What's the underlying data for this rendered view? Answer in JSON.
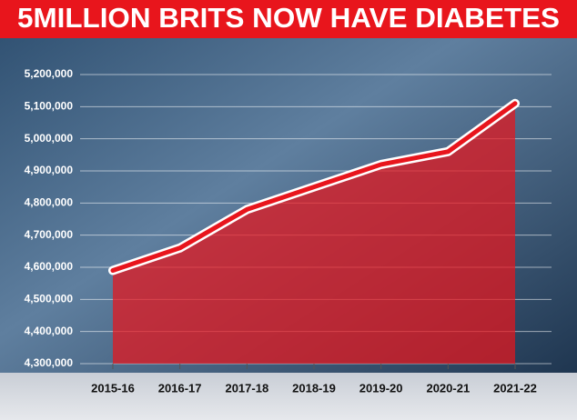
{
  "chart_data": {
    "type": "area-line",
    "title": "5MILLION BRITS NOW HAVE DIABETES",
    "categories": [
      "2015-16",
      "2016-17",
      "2017-18",
      "2018-19",
      "2019-20",
      "2020-21",
      "2021-22"
    ],
    "values": [
      4590000,
      4660000,
      4780000,
      4850000,
      4920000,
      4960000,
      5110000
    ],
    "color": "#e8151c",
    "ylim": [
      4300000,
      5200000
    ],
    "yticks": [
      {
        "value": 4300000,
        "label": "4,300,000"
      },
      {
        "value": 4400000,
        "label": "4,400,000"
      },
      {
        "value": 4500000,
        "label": "4,500,000"
      },
      {
        "value": 4600000,
        "label": "4,600,000"
      },
      {
        "value": 4700000,
        "label": "4,700,000"
      },
      {
        "value": 4800000,
        "label": "4,800,000"
      },
      {
        "value": 4900000,
        "label": "4,900,000"
      },
      {
        "value": 5000000,
        "label": "5,000,000"
      },
      {
        "value": 5100000,
        "label": "5,100,000"
      },
      {
        "value": 5200000,
        "label": "5,200,000"
      }
    ],
    "grid": true
  }
}
